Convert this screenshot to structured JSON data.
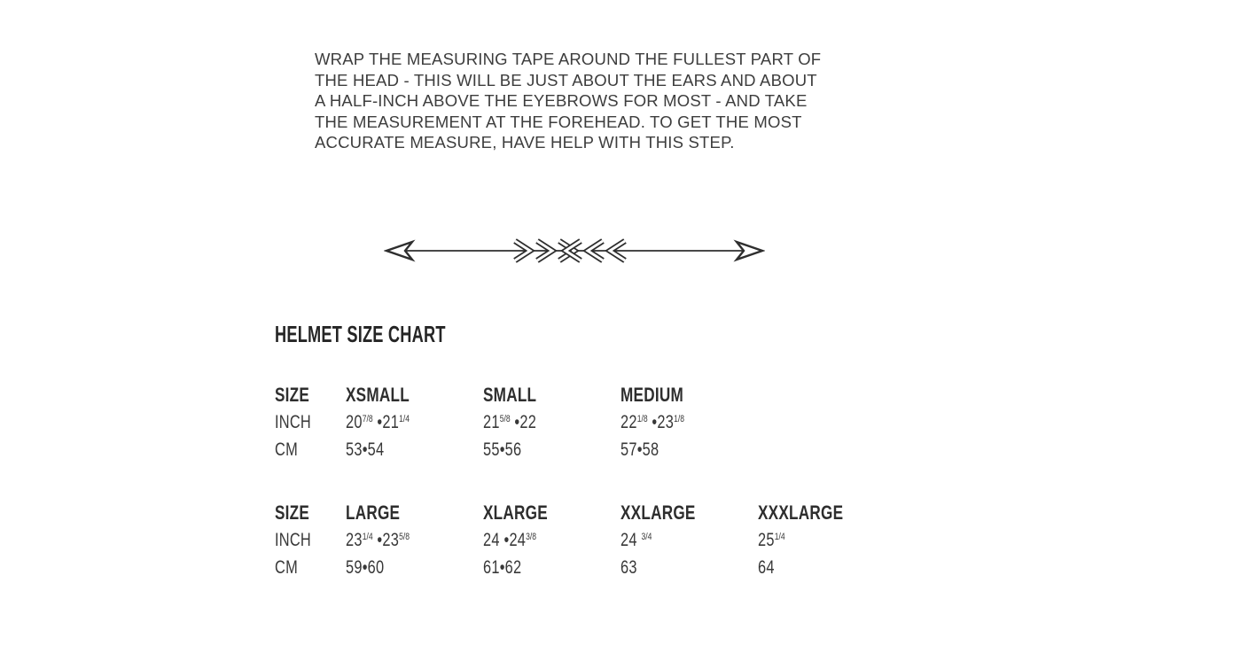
{
  "page": {
    "background_color": "#ffffff",
    "paragraph_color": "#3d3d3d",
    "table_text_color": "#333333",
    "divider_color": "#2e2e2e"
  },
  "instructions": {
    "text": "WRAP THE MEASURING TAPE AROUND THE FULLEST PART OF\nTHE HEAD - THIS WILL BE JUST ABOUT THE EARS AND ABOUT\nA HALF-INCH ABOVE THE EYEBROWS FOR MOST - AND TAKE\nTHE MEASUREMENT AT THE FOREHEAD. TO GET THE MOST\nACCURATE MEASURE, HAVE HELP WITH THIS STEP."
  },
  "divider": {
    "icon": "arrow-divider-icon",
    "description": "horizontal line with outlined arrowheads at both ends and chevron cluster in center"
  },
  "size_chart": {
    "title": "HELMET SIZE CHART",
    "tables": [
      {
        "columns": [
          "SIZE",
          "XSMALL",
          "SMALL",
          "MEDIUM"
        ],
        "rows": [
          {
            "label": "INCH",
            "values": [
              "20[7/8] •21[1/4]",
              "21[5/8] •22",
              "22[1/8] •23[1/8]"
            ]
          },
          {
            "label": "CM",
            "values": [
              "53•54",
              "55•56",
              "57•58"
            ]
          }
        ]
      },
      {
        "columns": [
          "SIZE",
          "LARGE",
          "XLARGE",
          "XXLARGE",
          "XXXLARGE"
        ],
        "rows": [
          {
            "label": "INCH",
            "values": [
              "23[1/4] •23[5/8]",
              "24 •24[3/8]",
              "24 [3/4]",
              "25[1/4]"
            ]
          },
          {
            "label": "CM",
            "values": [
              "59•60",
              "61•62",
              "63",
              "64"
            ]
          }
        ]
      }
    ]
  }
}
